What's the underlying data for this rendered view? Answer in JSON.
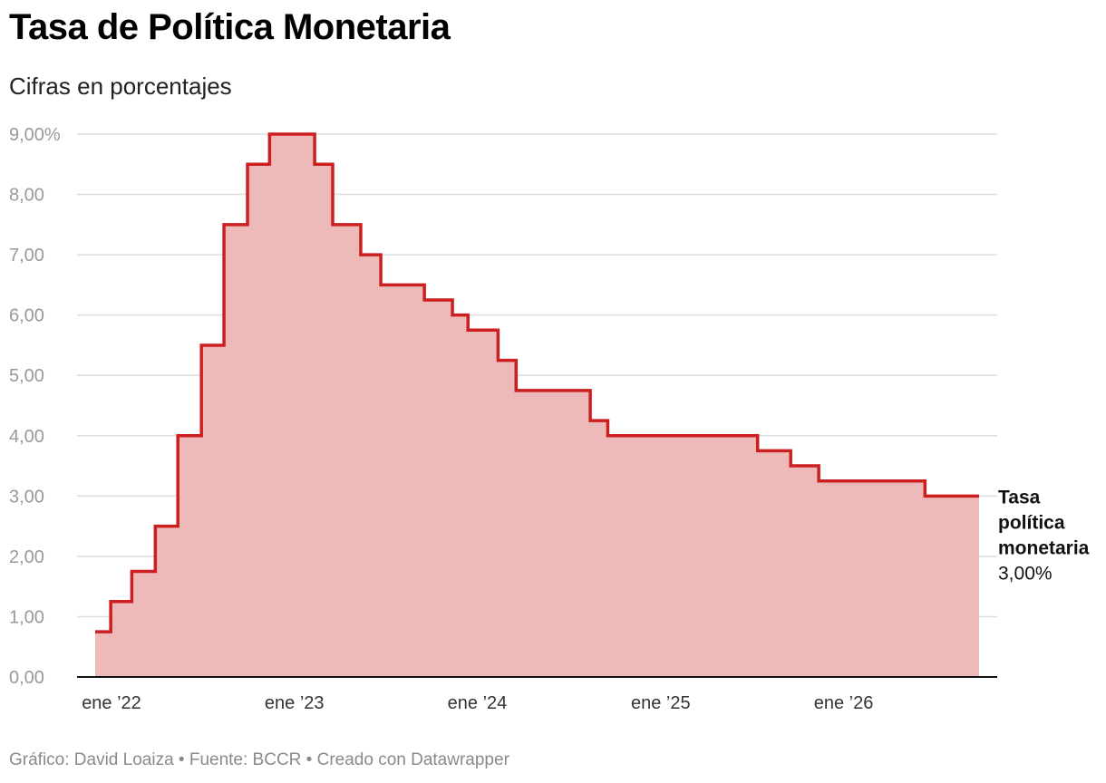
{
  "chart_data": {
    "type": "area",
    "step": true,
    "title": "Tasa de Política Monetaria",
    "subtitle": "Cifras en porcentajes",
    "ylim": [
      0,
      9
    ],
    "yticks": [
      {
        "value": 0,
        "label": "0,00"
      },
      {
        "value": 1,
        "label": "1,00"
      },
      {
        "value": 2,
        "label": "2,00"
      },
      {
        "value": 3,
        "label": "3,00"
      },
      {
        "value": 4,
        "label": "4,00"
      },
      {
        "value": 5,
        "label": "5,00"
      },
      {
        "value": 6,
        "label": "6,00"
      },
      {
        "value": 7,
        "label": "7,00"
      },
      {
        "value": 8,
        "label": "8,00"
      },
      {
        "value": 9,
        "label": "9,00%"
      }
    ],
    "xrange": [
      "2022-01-01",
      "2026-10-31"
    ],
    "xticks": [
      {
        "value": "2022-01-01",
        "label": "ene ’22"
      },
      {
        "value": "2023-01-01",
        "label": "ene ’23"
      },
      {
        "value": "2024-01-01",
        "label": "ene ’24"
      },
      {
        "value": "2025-01-01",
        "label": "ene ’25"
      },
      {
        "value": "2026-01-01",
        "label": "ene ’26"
      }
    ],
    "series": [
      {
        "name": "",
        "color": "#cc1f1f",
        "fill": "#edb9b9",
        "points": [
          {
            "x": "2022-01-01",
            "y": 0.75
          },
          {
            "x": "2022-02-01",
            "y": 1.25
          },
          {
            "x": "2022-03-15",
            "y": 1.75
          },
          {
            "x": "2022-05-01",
            "y": 2.5
          },
          {
            "x": "2022-06-15",
            "y": 4.0
          },
          {
            "x": "2022-08-01",
            "y": 5.5
          },
          {
            "x": "2022-09-15",
            "y": 7.5
          },
          {
            "x": "2022-11-01",
            "y": 8.5
          },
          {
            "x": "2022-12-15",
            "y": 9.0
          },
          {
            "x": "2023-03-15",
            "y": 8.5
          },
          {
            "x": "2023-04-20",
            "y": 7.5
          },
          {
            "x": "2023-06-15",
            "y": 7.0
          },
          {
            "x": "2023-07-25",
            "y": 6.5
          },
          {
            "x": "2023-10-20",
            "y": 6.25
          },
          {
            "x": "2023-12-15",
            "y": 6.0
          },
          {
            "x": "2024-01-15",
            "y": 5.75
          },
          {
            "x": "2024-03-15",
            "y": 5.25
          },
          {
            "x": "2024-04-20",
            "y": 4.75
          },
          {
            "x": "2024-09-15",
            "y": 4.25
          },
          {
            "x": "2024-10-20",
            "y": 4.0
          },
          {
            "x": "2025-08-15",
            "y": 3.75
          },
          {
            "x": "2025-10-20",
            "y": 3.5
          },
          {
            "x": "2025-12-15",
            "y": 3.25
          },
          {
            "x": "2026-07-15",
            "y": 3.0
          },
          {
            "x": "2026-10-31",
            "y": 3.0
          }
        ]
      }
    ],
    "annotation": {
      "lines": [
        "Tasa",
        "política",
        "monetaria"
      ],
      "value": "3,00%"
    },
    "grid": true,
    "legend": "none"
  },
  "footer": "Gráfico: David Loaiza • Fuente: BCCR • Creado con Datawrapper"
}
